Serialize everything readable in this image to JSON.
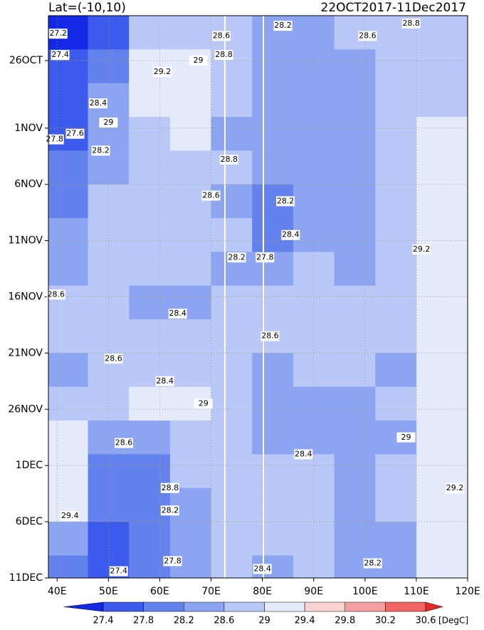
{
  "chart_data": {
    "type": "hovmoller",
    "title": "Lat=(-10,10)",
    "subtitle": "22OCT2017-11Dec2017",
    "units": "[DegC]",
    "xlim": [
      38.3,
      120
    ],
    "xticks": [
      {
        "value": 40,
        "label": "40E"
      },
      {
        "value": 50,
        "label": "50E"
      },
      {
        "value": 60,
        "label": "60E"
      },
      {
        "value": 70,
        "label": "70E"
      },
      {
        "value": 80,
        "label": "80E"
      },
      {
        "value": 90,
        "label": "90E"
      },
      {
        "value": 100,
        "label": "100E"
      },
      {
        "value": 110,
        "label": "110E"
      },
      {
        "value": 120,
        "label": "120E"
      }
    ],
    "ylim": [
      0,
      50
    ],
    "yticks": [
      {
        "value": 4,
        "label": "26OCT"
      },
      {
        "value": 10,
        "label": "1NOV"
      },
      {
        "value": 15,
        "label": "6NOV"
      },
      {
        "value": 20,
        "label": "11NOV"
      },
      {
        "value": 25,
        "label": "16NOV"
      },
      {
        "value": 30,
        "label": "21NOV"
      },
      {
        "value": 35,
        "label": "26NOV"
      },
      {
        "value": 40,
        "label": "1DEC"
      },
      {
        "value": 45,
        "label": "6DEC"
      },
      {
        "value": 50,
        "label": "11DEC"
      }
    ],
    "grid": true,
    "levels": [
      27.4,
      27.8,
      28.2,
      28.6,
      29,
      29.4,
      29.8,
      30.2,
      30.6
    ],
    "colors": [
      "#1428e6",
      "#3c5aeb",
      "#6482ee",
      "#8ca5f2",
      "#b9c8f7",
      "#e6ebfb",
      "#fad2d2",
      "#f5a0a0",
      "#f06464",
      "#e62828"
    ],
    "lon_edges": [
      38.3,
      46,
      54,
      62,
      70,
      78,
      86,
      94,
      102,
      110,
      120
    ],
    "day_edges": [
      0,
      3,
      6,
      9,
      12,
      15,
      18,
      21,
      24,
      27,
      30,
      33,
      36,
      39,
      42,
      45,
      48,
      50
    ],
    "values": [
      [
        27.2,
        27.6,
        28.6,
        28.8,
        28.6,
        28.2,
        28.4,
        28.6,
        28.7,
        28.8
      ],
      [
        27.4,
        28.0,
        29.1,
        29.0,
        28.7,
        28.3,
        28.3,
        28.5,
        28.6,
        28.8
      ],
      [
        27.6,
        28.4,
        29.1,
        29.0,
        28.7,
        28.4,
        28.2,
        28.4,
        28.6,
        28.9
      ],
      [
        27.7,
        28.3,
        28.9,
        29.1,
        28.5,
        28.4,
        28.3,
        28.4,
        28.7,
        29.2
      ],
      [
        27.8,
        28.5,
        28.8,
        28.7,
        28.6,
        28.3,
        28.5,
        28.4,
        28.6,
        29.3
      ],
      [
        28.0,
        28.6,
        28.9,
        28.8,
        28.5,
        28.1,
        28.5,
        28.3,
        28.8,
        29.3
      ],
      [
        28.3,
        28.7,
        28.8,
        28.6,
        28.6,
        27.9,
        28.4,
        28.4,
        28.6,
        29.2
      ],
      [
        28.5,
        28.6,
        28.8,
        28.6,
        28.5,
        28.2,
        28.7,
        28.4,
        28.7,
        29.3
      ],
      [
        28.6,
        28.6,
        28.5,
        28.5,
        28.6,
        28.8,
        28.7,
        28.6,
        28.8,
        29.3
      ],
      [
        28.6,
        28.7,
        28.6,
        28.7,
        28.6,
        28.7,
        28.7,
        28.8,
        28.6,
        29.2
      ],
      [
        28.5,
        28.6,
        28.8,
        28.6,
        28.7,
        28.5,
        28.6,
        28.6,
        28.5,
        29.3
      ],
      [
        28.7,
        28.7,
        29.1,
        29.0,
        28.7,
        28.5,
        28.5,
        28.5,
        28.6,
        29.2
      ],
      [
        29.0,
        28.3,
        28.3,
        28.8,
        28.6,
        28.3,
        28.4,
        28.4,
        28.5,
        29.2
      ],
      [
        29.3,
        28.0,
        28.1,
        28.8,
        28.7,
        28.6,
        28.6,
        28.5,
        28.6,
        29.1
      ],
      [
        29.2,
        27.9,
        28.0,
        28.5,
        28.7,
        28.7,
        28.6,
        28.5,
        28.6,
        29.2
      ],
      [
        28.4,
        27.5,
        27.9,
        28.3,
        28.7,
        28.7,
        28.7,
        28.4,
        28.5,
        29.1
      ],
      [
        27.9,
        27.5,
        27.8,
        28.2,
        28.7,
        28.5,
        28.6,
        28.4,
        28.5,
        29.3
      ]
    ],
    "contour_labels": [
      {
        "value": 27.2,
        "lon": 40.2,
        "day": 1.6
      },
      {
        "value": 27.4,
        "lon": 40.6,
        "day": 3.5
      },
      {
        "value": 28.6,
        "lon": 72,
        "day": 1.8
      },
      {
        "value": 28.2,
        "lon": 84,
        "day": 0.9
      },
      {
        "value": 28.6,
        "lon": 100.5,
        "day": 1.8
      },
      {
        "value": 28.8,
        "lon": 109,
        "day": 0.7
      },
      {
        "value": 29,
        "lon": 67.5,
        "day": 4
      },
      {
        "value": 29.2,
        "lon": 60.5,
        "day": 5
      },
      {
        "value": 28.8,
        "lon": 72.5,
        "day": 3.5
      },
      {
        "value": 28.4,
        "lon": 48,
        "day": 7.8
      },
      {
        "value": 29,
        "lon": 50,
        "day": 9.5
      },
      {
        "value": 27.6,
        "lon": 43.5,
        "day": 10.5
      },
      {
        "value": 27.8,
        "lon": 39.5,
        "day": 11
      },
      {
        "value": 28.2,
        "lon": 48.5,
        "day": 12
      },
      {
        "value": 28.8,
        "lon": 73.5,
        "day": 12.8
      },
      {
        "value": 28.6,
        "lon": 70,
        "day": 16
      },
      {
        "value": 28.2,
        "lon": 84.5,
        "day": 16.5
      },
      {
        "value": 28.4,
        "lon": 85.5,
        "day": 19.5
      },
      {
        "value": 27.8,
        "lon": 80.5,
        "day": 21.5
      },
      {
        "value": 28.2,
        "lon": 75,
        "day": 21.5
      },
      {
        "value": 29.2,
        "lon": 111,
        "day": 20.8
      },
      {
        "value": 28.6,
        "lon": 39.8,
        "day": 24.8
      },
      {
        "value": 28.4,
        "lon": 63.5,
        "day": 26.5
      },
      {
        "value": 28.6,
        "lon": 81.5,
        "day": 28.5
      },
      {
        "value": 28.6,
        "lon": 51,
        "day": 30.5
      },
      {
        "value": 28.4,
        "lon": 61,
        "day": 32.5
      },
      {
        "value": 29,
        "lon": 68.5,
        "day": 34.5
      },
      {
        "value": 28.6,
        "lon": 53,
        "day": 38
      },
      {
        "value": 28.4,
        "lon": 88,
        "day": 39
      },
      {
        "value": 28.8,
        "lon": 62,
        "day": 42
      },
      {
        "value": 29.4,
        "lon": 42.5,
        "day": 44.5
      },
      {
        "value": 28.2,
        "lon": 62,
        "day": 44
      },
      {
        "value": 27.8,
        "lon": 62.5,
        "day": 48.5
      },
      {
        "value": 27.4,
        "lon": 52,
        "day": 49.4
      },
      {
        "value": 28.4,
        "lon": 80,
        "day": 49.2
      },
      {
        "value": 28.2,
        "lon": 101.5,
        "day": 48.7
      },
      {
        "value": 29.2,
        "lon": 117.5,
        "day": 42
      },
      {
        "value": 29,
        "lon": 108,
        "day": 37.5
      }
    ]
  }
}
